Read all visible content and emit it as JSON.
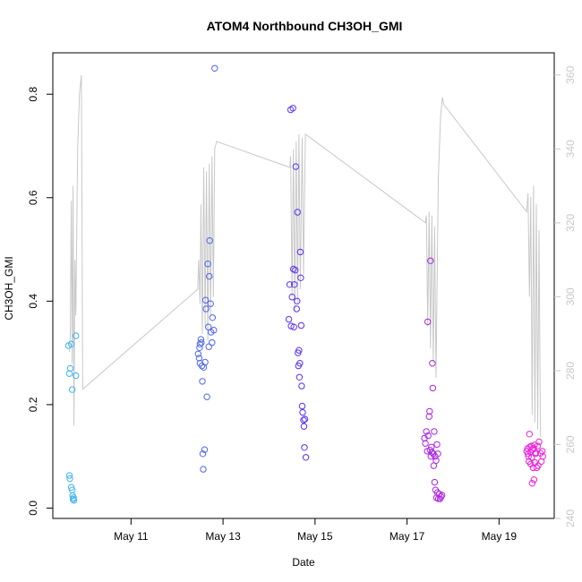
{
  "chart_data": {
    "type": "scatter",
    "title": "ATOM4 Northbound CH3OH_GMI",
    "xlabel": "Date",
    "ylabel": "CH3OH_GMI",
    "x_unit": "day of May",
    "xlim": [
      9.3,
      20.2
    ],
    "ylim": [
      -0.02,
      0.88
    ],
    "y2lim": [
      240,
      366
    ],
    "x_ticks": [
      {
        "value": 11,
        "label": "May 11"
      },
      {
        "value": 13,
        "label": "May 13"
      },
      {
        "value": 15,
        "label": "May 15"
      },
      {
        "value": 17,
        "label": "May 17"
      },
      {
        "value": 19,
        "label": "May 19"
      }
    ],
    "y_ticks": [
      {
        "value": 0.0,
        "label": "0.0"
      },
      {
        "value": 0.2,
        "label": "0.2"
      },
      {
        "value": 0.4,
        "label": "0.4"
      },
      {
        "value": 0.6,
        "label": "0.6"
      },
      {
        "value": 0.8,
        "label": "0.8"
      }
    ],
    "y2_ticks": [
      {
        "value": 240,
        "label": "240"
      },
      {
        "value": 260,
        "label": "260"
      },
      {
        "value": 280,
        "label": "280"
      },
      {
        "value": 300,
        "label": "300"
      },
      {
        "value": 320,
        "label": "320"
      },
      {
        "value": 340,
        "label": "340"
      },
      {
        "value": 360,
        "label": "360"
      }
    ],
    "colors": {
      "line": "#c8c8c8",
      "axis": "#000000",
      "right_axis": "#c8c8c8",
      "point_start": "#3fb6f0",
      "point_mid": "#5b2cf0",
      "point_end": "#f020d8"
    },
    "line_series": {
      "name": "secondary (right axis)",
      "points": [
        [
          9.66,
          285
        ],
        [
          9.68,
          290
        ],
        [
          9.7,
          326
        ],
        [
          9.72,
          282
        ],
        [
          9.74,
          330
        ],
        [
          9.76,
          265
        ],
        [
          9.78,
          310
        ],
        [
          9.8,
          295
        ],
        [
          9.84,
          340
        ],
        [
          9.88,
          355
        ],
        [
          9.92,
          360
        ],
        [
          9.95,
          275
        ],
        [
          12.45,
          302
        ],
        [
          12.47,
          310
        ],
        [
          12.5,
          298
        ],
        [
          12.52,
          325
        ],
        [
          12.55,
          290
        ],
        [
          12.58,
          335
        ],
        [
          12.61,
          292
        ],
        [
          12.64,
          334
        ],
        [
          12.67,
          288
        ],
        [
          12.7,
          336
        ],
        [
          12.73,
          295
        ],
        [
          12.76,
          338
        ],
        [
          12.79,
          300
        ],
        [
          12.82,
          340
        ],
        [
          12.86,
          342
        ],
        [
          14.45,
          335
        ],
        [
          14.47,
          338
        ],
        [
          14.5,
          300
        ],
        [
          14.53,
          340
        ],
        [
          14.56,
          296
        ],
        [
          14.59,
          342
        ],
        [
          14.62,
          298
        ],
        [
          14.65,
          344
        ],
        [
          14.68,
          302
        ],
        [
          14.72,
          343
        ],
        [
          14.75,
          306
        ],
        [
          14.79,
          344
        ],
        [
          17.4,
          320
        ],
        [
          17.42,
          322
        ],
        [
          17.45,
          292
        ],
        [
          17.48,
          323
        ],
        [
          17.51,
          286
        ],
        [
          17.54,
          322
        ],
        [
          17.57,
          282
        ],
        [
          17.6,
          319
        ],
        [
          17.63,
          278
        ],
        [
          17.68,
          332
        ],
        [
          17.73,
          349
        ],
        [
          17.77,
          354
        ],
        [
          17.8,
          352
        ],
        [
          19.6,
          323
        ],
        [
          19.63,
          328
        ],
        [
          19.66,
          300
        ],
        [
          19.69,
          327
        ],
        [
          19.72,
          268
        ],
        [
          19.75,
          330
        ],
        [
          19.78,
          266
        ],
        [
          19.81,
          325
        ],
        [
          19.84,
          264
        ],
        [
          19.87,
          318
        ],
        [
          19.9,
          262
        ]
      ]
    },
    "scatter_series": {
      "name": "CH3OH_GMI",
      "x_range": [
        9.63,
        19.95
      ],
      "points": [
        [
          9.64,
          0.314
        ],
        [
          9.66,
          0.26
        ],
        [
          9.68,
          0.27
        ],
        [
          9.7,
          0.317
        ],
        [
          9.72,
          0.229
        ],
        [
          9.66,
          0.063
        ],
        [
          9.67,
          0.057
        ],
        [
          9.7,
          0.04
        ],
        [
          9.72,
          0.035
        ],
        [
          9.73,
          0.024
        ],
        [
          9.74,
          0.017
        ],
        [
          9.75,
          0.02
        ],
        [
          9.76,
          0.015
        ],
        [
          9.8,
          0.333
        ],
        [
          9.8,
          0.256
        ],
        [
          12.46,
          0.298
        ],
        [
          12.48,
          0.29
        ],
        [
          12.49,
          0.31
        ],
        [
          12.5,
          0.317
        ],
        [
          12.5,
          0.28
        ],
        [
          12.52,
          0.326
        ],
        [
          12.53,
          0.32
        ],
        [
          12.54,
          0.275
        ],
        [
          12.55,
          0.245
        ],
        [
          12.56,
          0.105
        ],
        [
          12.57,
          0.075
        ],
        [
          12.58,
          0.272
        ],
        [
          12.6,
          0.113
        ],
        [
          12.61,
          0.282
        ],
        [
          12.62,
          0.402
        ],
        [
          12.63,
          0.385
        ],
        [
          12.65,
          0.215
        ],
        [
          12.67,
          0.472
        ],
        [
          12.68,
          0.35
        ],
        [
          12.69,
          0.312
        ],
        [
          12.7,
          0.448
        ],
        [
          12.71,
          0.517
        ],
        [
          12.73,
          0.395
        ],
        [
          12.74,
          0.34
        ],
        [
          12.76,
          0.32
        ],
        [
          12.77,
          0.368
        ],
        [
          12.8,
          0.344
        ],
        [
          12.82,
          0.85
        ],
        [
          14.43,
          0.365
        ],
        [
          14.45,
          0.432
        ],
        [
          14.47,
          0.77
        ],
        [
          14.48,
          0.352
        ],
        [
          14.5,
          0.408
        ],
        [
          14.52,
          0.773
        ],
        [
          14.53,
          0.462
        ],
        [
          14.54,
          0.35
        ],
        [
          14.55,
          0.432
        ],
        [
          14.57,
          0.46
        ],
        [
          14.58,
          0.66
        ],
        [
          14.6,
          0.385
        ],
        [
          14.61,
          0.4
        ],
        [
          14.62,
          0.572
        ],
        [
          14.63,
          0.3
        ],
        [
          14.64,
          0.275
        ],
        [
          14.65,
          0.305
        ],
        [
          14.66,
          0.253
        ],
        [
          14.67,
          0.28
        ],
        [
          14.68,
          0.495
        ],
        [
          14.69,
          0.445
        ],
        [
          14.7,
          0.353
        ],
        [
          14.71,
          0.236
        ],
        [
          14.72,
          0.197
        ],
        [
          14.73,
          0.185
        ],
        [
          14.75,
          0.17
        ],
        [
          14.76,
          0.158
        ],
        [
          14.77,
          0.117
        ],
        [
          14.78,
          0.172
        ],
        [
          14.8,
          0.098
        ],
        [
          17.38,
          0.135
        ],
        [
          17.4,
          0.125
        ],
        [
          17.42,
          0.148
        ],
        [
          17.44,
          0.11
        ],
        [
          17.45,
          0.36
        ],
        [
          17.46,
          0.14
        ],
        [
          17.48,
          0.177
        ],
        [
          17.49,
          0.187
        ],
        [
          17.5,
          0.112
        ],
        [
          17.51,
          0.478
        ],
        [
          17.52,
          0.1
        ],
        [
          17.53,
          0.118
        ],
        [
          17.54,
          0.108
        ],
        [
          17.55,
          0.28
        ],
        [
          17.56,
          0.232
        ],
        [
          17.57,
          0.105
        ],
        [
          17.58,
          0.082
        ],
        [
          17.59,
          0.148
        ],
        [
          17.6,
          0.05
        ],
        [
          17.61,
          0.1
        ],
        [
          17.62,
          0.035
        ],
        [
          17.63,
          0.092
        ],
        [
          17.64,
          0.02
        ],
        [
          17.65,
          0.123
        ],
        [
          17.66,
          0.03
        ],
        [
          17.67,
          0.105
        ],
        [
          17.68,
          0.018
        ],
        [
          17.7,
          0.027
        ],
        [
          17.72,
          0.018
        ],
        [
          17.74,
          0.022
        ],
        [
          17.76,
          0.025
        ],
        [
          19.6,
          0.11
        ],
        [
          19.62,
          0.115
        ],
        [
          19.63,
          0.105
        ],
        [
          19.64,
          0.1
        ],
        [
          19.65,
          0.09
        ],
        [
          19.66,
          0.143
        ],
        [
          19.67,
          0.118
        ],
        [
          19.68,
          0.108
        ],
        [
          19.69,
          0.085
        ],
        [
          19.7,
          0.12
        ],
        [
          19.71,
          0.098
        ],
        [
          19.72,
          0.048
        ],
        [
          19.73,
          0.113
        ],
        [
          19.74,
          0.078
        ],
        [
          19.75,
          0.116
        ],
        [
          19.76,
          0.055
        ],
        [
          19.77,
          0.122
        ],
        [
          19.78,
          0.088
        ],
        [
          19.79,
          0.105
        ],
        [
          19.8,
          0.107
        ],
        [
          19.82,
          0.078
        ],
        [
          19.84,
          0.12
        ],
        [
          19.85,
          0.082
        ],
        [
          19.87,
          0.128
        ],
        [
          19.9,
          0.106
        ],
        [
          19.92,
          0.09
        ],
        [
          19.94,
          0.11
        ],
        [
          19.95,
          0.1
        ]
      ]
    }
  }
}
